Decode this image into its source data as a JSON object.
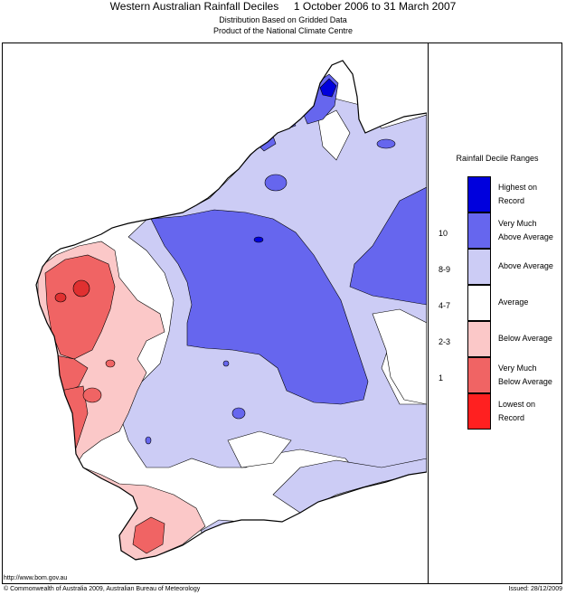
{
  "header": {
    "title": "Western Australian Rainfall Deciles     1 October 2006 to 31 March 2007",
    "subtitle_1": "Distribution Based on Gridded Data",
    "subtitle_2": "Product of the National Climate Centre"
  },
  "legend": {
    "title": "Rainfall Decile Ranges",
    "items": [
      {
        "label_1": "Highest on",
        "label_2": "Record",
        "decile": "",
        "color": "#0000dd"
      },
      {
        "label_1": "Very Much",
        "label_2": "Above Average",
        "decile": "10",
        "color": "#6666ee"
      },
      {
        "label_1": "Above Average",
        "label_2": "",
        "decile": "8-9",
        "color": "#ccccf5"
      },
      {
        "label_1": "Average",
        "label_2": "",
        "decile": "4-7",
        "color": "#ffffff"
      },
      {
        "label_1": "Below Average",
        "label_2": "",
        "decile": "2-3",
        "color": "#fbc8c8"
      },
      {
        "label_1": "Very Much",
        "label_2": "Below Average",
        "decile": "1",
        "color": "#f06464"
      },
      {
        "label_1": "Lowest on",
        "label_2": "Record",
        "decile": "",
        "color": "#ff2020"
      }
    ]
  },
  "footer": {
    "url": "http://www.bom.gov.au",
    "copyright": "© Commonwealth of Australia 2009, Australian Bureau of Meteorology",
    "issued": "Issued: 28/12/2009"
  }
}
